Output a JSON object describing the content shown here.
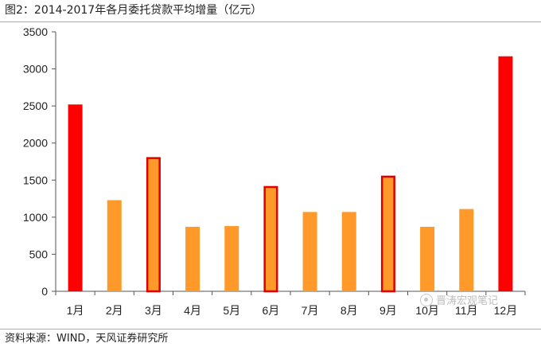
{
  "figure": {
    "title": "图2：2014-2017年各月委托贷款平均增量（亿元）",
    "source": "资料来源：WIND，天风证券研究所",
    "watermark": "晋涛宏观笔记",
    "colors": {
      "highlight": "#ff0000",
      "highlight_border": "#e00000",
      "normal": "#ff9a2a",
      "rule": "#e8a33d"
    }
  },
  "chart_data": {
    "type": "bar",
    "title": "图2：2014-2017年各月委托贷款平均增量（亿元）",
    "xlabel": "",
    "ylabel": "",
    "ylim": [
      0,
      3500
    ],
    "yticks": [
      0,
      500,
      1000,
      1500,
      2000,
      2500,
      3000,
      3500
    ],
    "grid": false,
    "categories": [
      "1月",
      "2月",
      "3月",
      "4月",
      "5月",
      "6月",
      "7月",
      "8月",
      "9月",
      "10月",
      "11月",
      "12月"
    ],
    "values": [
      2520,
      1230,
      1810,
      870,
      880,
      1420,
      1070,
      1070,
      1560,
      870,
      1110,
      3170
    ],
    "styles": [
      "red",
      "orange",
      "outlined",
      "orange",
      "orange",
      "outlined",
      "orange",
      "orange",
      "outlined",
      "orange",
      "orange",
      "red"
    ]
  }
}
